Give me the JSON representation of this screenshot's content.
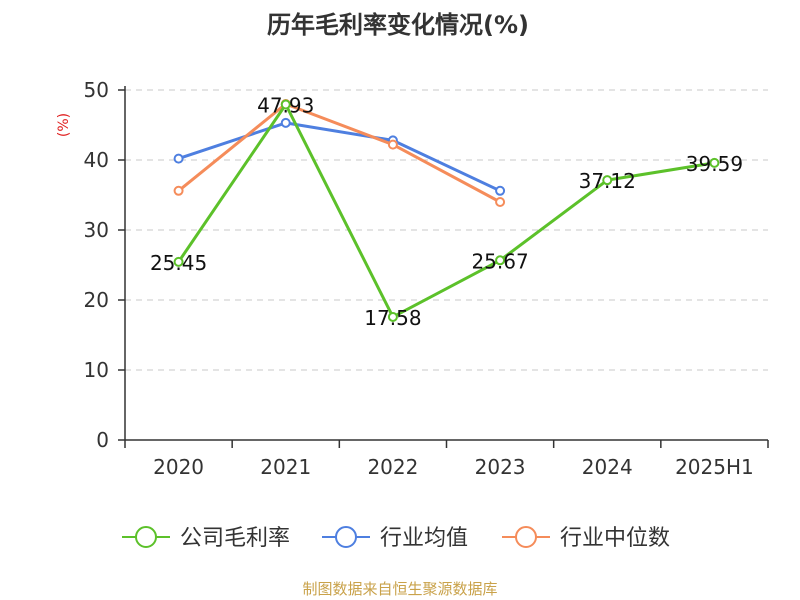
{
  "chart_data": {
    "type": "line",
    "title": "历年毛利率变化情况(%)",
    "ylabel": "(%)",
    "categories": [
      "2020",
      "2021",
      "2022",
      "2023",
      "2024",
      "2025H1"
    ],
    "ylim": [
      0,
      50
    ],
    "yticks": [
      0,
      10,
      20,
      30,
      40,
      50
    ],
    "grid": true,
    "legend_position": "bottom",
    "series": [
      {
        "name": "公司毛利率",
        "color": "#5cc12a",
        "values": [
          25.45,
          47.93,
          17.58,
          25.67,
          37.12,
          39.59
        ],
        "labels": [
          "25.45",
          "47.93",
          "17.58",
          "25.67",
          "37.12",
          "39.59"
        ]
      },
      {
        "name": "行业均值",
        "color": "#4e7fe0",
        "values": [
          40.2,
          45.3,
          42.8,
          35.6,
          null,
          null
        ]
      },
      {
        "name": "行业中位数",
        "color": "#f58c5a",
        "values": [
          35.6,
          48.0,
          42.2,
          34.0,
          null,
          null
        ]
      }
    ]
  },
  "source_text": "制图数据来自恒生聚源数据库"
}
